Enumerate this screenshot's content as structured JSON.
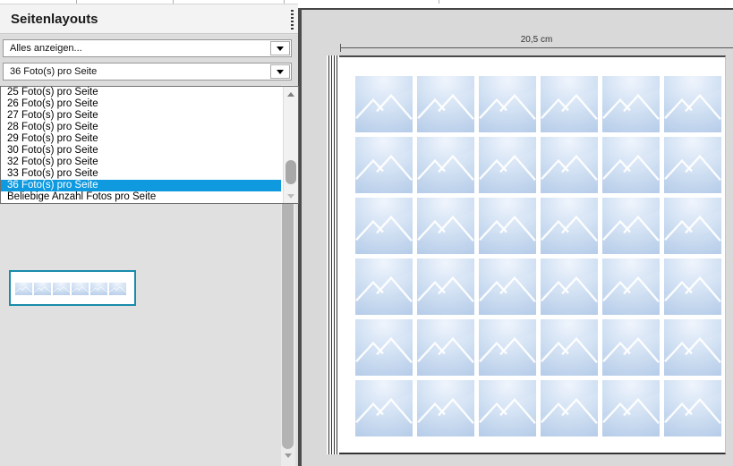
{
  "sidebar": {
    "title": "Seitenlayouts",
    "show_filter": {
      "value": "Alles anzeigen..."
    },
    "layout_filter": {
      "value": "36 Foto(s) pro Seite"
    },
    "layout_list": {
      "items": [
        "25 Foto(s) pro Seite",
        "26 Foto(s) pro Seite",
        "27 Foto(s) pro Seite",
        "28 Foto(s) pro Seite",
        "29 Foto(s) pro Seite",
        "30 Foto(s) pro Seite",
        "32 Foto(s) pro Seite",
        "33 Foto(s) pro Seite",
        "36 Foto(s) pro Seite",
        "Beliebige Anzahl Fotos pro Seite"
      ],
      "selected_index": 8,
      "selected_item": "36 Foto(s) pro Seite"
    },
    "thumbnail": {
      "cells_per_row": 6,
      "selected": true
    }
  },
  "preview": {
    "ruler_label": "20,5 cm",
    "grid": {
      "rows": 6,
      "cols": 6,
      "total_photos": 36
    }
  },
  "colors": {
    "list_selection": "#0f9ae0",
    "thumbnail_selection": "#1a8bac",
    "placeholder_light": "#eff5fd",
    "placeholder_dark": "#b2c9e8"
  }
}
